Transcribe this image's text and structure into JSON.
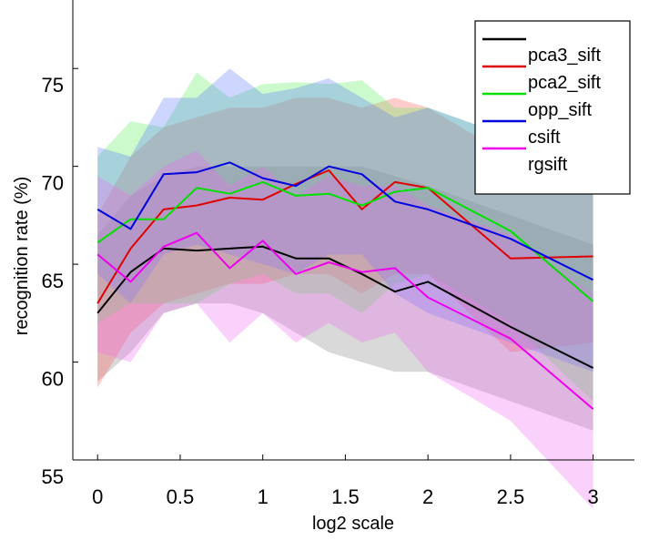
{
  "chart_data": {
    "type": "line",
    "xlabel": "log2 scale",
    "ylabel": "recognition rate (%)",
    "xlim": [
      -0.15,
      3.25
    ],
    "ylim": [
      55,
      78.5
    ],
    "x_ticks": [
      0,
      0.5,
      1,
      1.5,
      2,
      2.5,
      3
    ],
    "x_tick_labels": [
      "0",
      "0.5",
      "1",
      "1.5",
      "2",
      "2.5",
      "3"
    ],
    "y_ticks": [
      55,
      60,
      65,
      70,
      75
    ],
    "y_tick_labels": [
      "55",
      "60",
      "65",
      "70",
      "75"
    ],
    "grid": false,
    "legend_position": "top-right",
    "series": [
      {
        "name": "pca3_sift",
        "color": "#000000",
        "band_color": "#808080",
        "x": [
          0,
          0.2,
          0.4,
          0.6,
          0.8,
          1.0,
          1.2,
          1.4,
          1.6,
          1.8,
          2.0,
          2.5,
          3.0
        ],
        "y": [
          62.5,
          64.6,
          65.8,
          65.7,
          65.8,
          65.9,
          65.3,
          65.3,
          64.5,
          63.6,
          64.1,
          61.8,
          59.7
        ],
        "upper": [
          66.5,
          68.5,
          69.5,
          70.0,
          70.0,
          70.0,
          70.0,
          70.0,
          70.0,
          69.5,
          69.0,
          67.5,
          66.0
        ],
        "lower": [
          59.0,
          60.5,
          62.5,
          63.0,
          63.0,
          62.5,
          61.5,
          60.5,
          60.0,
          59.5,
          59.5,
          58.0,
          56.5
        ]
      },
      {
        "name": "pca2_sift",
        "color": "#e00000",
        "band_color": "#ff5555",
        "x": [
          0,
          0.2,
          0.4,
          0.6,
          0.8,
          1.0,
          1.2,
          1.4,
          1.6,
          1.8,
          2.0,
          2.5,
          3.0
        ],
        "y": [
          63.0,
          65.8,
          67.8,
          68.0,
          68.4,
          68.3,
          69.1,
          69.8,
          67.8,
          69.2,
          68.9,
          65.3,
          65.4
        ],
        "upper": [
          67.5,
          70.5,
          72.0,
          72.5,
          73.0,
          73.0,
          73.5,
          73.5,
          73.0,
          73.5,
          73.0,
          70.5,
          70.0
        ],
        "lower": [
          58.7,
          61.5,
          63.0,
          63.5,
          64.0,
          64.0,
          64.5,
          64.5,
          63.5,
          64.5,
          64.5,
          60.5,
          61.0
        ]
      },
      {
        "name": "opp_sift",
        "color": "#00e000",
        "band_color": "#55ee55",
        "x": [
          0,
          0.2,
          0.4,
          0.6,
          0.8,
          1.0,
          1.2,
          1.4,
          1.6,
          1.8,
          2.0,
          2.5,
          3.0
        ],
        "y": [
          66.1,
          67.3,
          67.3,
          68.9,
          68.6,
          69.2,
          68.5,
          68.6,
          68.0,
          68.7,
          68.9,
          66.7,
          63.1
        ],
        "upper": [
          70.5,
          72.3,
          72.0,
          74.8,
          73.5,
          74.2,
          74.3,
          74.2,
          74.4,
          73.0,
          73.0,
          71.5,
          68.5
        ],
        "lower": [
          62.0,
          63.0,
          63.0,
          63.0,
          64.0,
          64.5,
          63.5,
          63.5,
          62.5,
          64.0,
          64.5,
          62.0,
          58.0
        ]
      },
      {
        "name": "csift",
        "color": "#0000e0",
        "band_color": "#5577ff",
        "x": [
          0,
          0.2,
          0.4,
          0.6,
          0.8,
          1.0,
          1.2,
          1.4,
          1.6,
          1.8,
          2.0,
          2.5,
          3.0
        ],
        "y": [
          67.8,
          66.8,
          69.6,
          69.7,
          70.2,
          69.4,
          69.0,
          70.0,
          69.6,
          68.2,
          67.8,
          66.3,
          64.2
        ],
        "upper": [
          71.0,
          70.5,
          73.5,
          73.5,
          75.0,
          73.7,
          74.0,
          74.5,
          73.5,
          72.5,
          73.0,
          71.5,
          69.5
        ],
        "lower": [
          64.5,
          63.0,
          65.5,
          66.0,
          65.5,
          65.0,
          64.5,
          65.5,
          65.5,
          63.5,
          62.5,
          61.0,
          59.5
        ]
      },
      {
        "name": "rgsift",
        "color": "#ee00ee",
        "band_color": "#ee66ee",
        "x": [
          0,
          0.2,
          0.4,
          0.6,
          0.8,
          1.0,
          1.2,
          1.4,
          1.6,
          1.8,
          2.0,
          2.5,
          3.0
        ],
        "y": [
          65.5,
          64.1,
          65.9,
          66.6,
          64.8,
          66.2,
          64.5,
          65.1,
          64.6,
          64.8,
          63.3,
          61.2,
          57.6
        ],
        "upper": [
          69.5,
          68.5,
          70.0,
          70.8,
          69.0,
          70.0,
          68.5,
          69.5,
          69.0,
          69.0,
          68.0,
          66.5,
          63.5
        ],
        "lower": [
          60.5,
          60.0,
          62.5,
          63.0,
          61.0,
          62.5,
          61.0,
          62.0,
          61.0,
          61.5,
          59.5,
          57.0,
          52.5
        ]
      }
    ]
  }
}
